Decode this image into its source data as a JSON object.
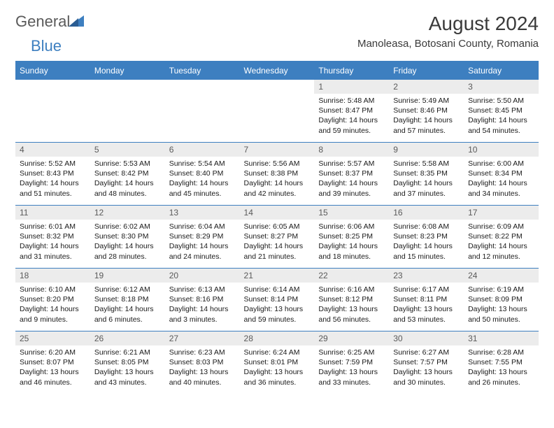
{
  "logo": {
    "text1": "General",
    "text2": "Blue"
  },
  "title": "August 2024",
  "location": "Manoleasa, Botosani County, Romania",
  "colors": {
    "header_bg": "#3d7fc0",
    "header_text": "#ffffff",
    "daynum_bg": "#ececec",
    "border": "#3d7fc0",
    "body_text": "#1a1a1a",
    "title_text": "#3a3a3a",
    "logo_gray": "#5a5a5a",
    "logo_blue": "#3d7fc0"
  },
  "weekdays": [
    "Sunday",
    "Monday",
    "Tuesday",
    "Wednesday",
    "Thursday",
    "Friday",
    "Saturday"
  ],
  "weeks": [
    [
      {
        "empty": true
      },
      {
        "empty": true
      },
      {
        "empty": true
      },
      {
        "empty": true
      },
      {
        "day": "1",
        "sunrise": "Sunrise: 5:48 AM",
        "sunset": "Sunset: 8:47 PM",
        "daylight1": "Daylight: 14 hours",
        "daylight2": "and 59 minutes."
      },
      {
        "day": "2",
        "sunrise": "Sunrise: 5:49 AM",
        "sunset": "Sunset: 8:46 PM",
        "daylight1": "Daylight: 14 hours",
        "daylight2": "and 57 minutes."
      },
      {
        "day": "3",
        "sunrise": "Sunrise: 5:50 AM",
        "sunset": "Sunset: 8:45 PM",
        "daylight1": "Daylight: 14 hours",
        "daylight2": "and 54 minutes."
      }
    ],
    [
      {
        "day": "4",
        "sunrise": "Sunrise: 5:52 AM",
        "sunset": "Sunset: 8:43 PM",
        "daylight1": "Daylight: 14 hours",
        "daylight2": "and 51 minutes."
      },
      {
        "day": "5",
        "sunrise": "Sunrise: 5:53 AM",
        "sunset": "Sunset: 8:42 PM",
        "daylight1": "Daylight: 14 hours",
        "daylight2": "and 48 minutes."
      },
      {
        "day": "6",
        "sunrise": "Sunrise: 5:54 AM",
        "sunset": "Sunset: 8:40 PM",
        "daylight1": "Daylight: 14 hours",
        "daylight2": "and 45 minutes."
      },
      {
        "day": "7",
        "sunrise": "Sunrise: 5:56 AM",
        "sunset": "Sunset: 8:38 PM",
        "daylight1": "Daylight: 14 hours",
        "daylight2": "and 42 minutes."
      },
      {
        "day": "8",
        "sunrise": "Sunrise: 5:57 AM",
        "sunset": "Sunset: 8:37 PM",
        "daylight1": "Daylight: 14 hours",
        "daylight2": "and 39 minutes."
      },
      {
        "day": "9",
        "sunrise": "Sunrise: 5:58 AM",
        "sunset": "Sunset: 8:35 PM",
        "daylight1": "Daylight: 14 hours",
        "daylight2": "and 37 minutes."
      },
      {
        "day": "10",
        "sunrise": "Sunrise: 6:00 AM",
        "sunset": "Sunset: 8:34 PM",
        "daylight1": "Daylight: 14 hours",
        "daylight2": "and 34 minutes."
      }
    ],
    [
      {
        "day": "11",
        "sunrise": "Sunrise: 6:01 AM",
        "sunset": "Sunset: 8:32 PM",
        "daylight1": "Daylight: 14 hours",
        "daylight2": "and 31 minutes."
      },
      {
        "day": "12",
        "sunrise": "Sunrise: 6:02 AM",
        "sunset": "Sunset: 8:30 PM",
        "daylight1": "Daylight: 14 hours",
        "daylight2": "and 28 minutes."
      },
      {
        "day": "13",
        "sunrise": "Sunrise: 6:04 AM",
        "sunset": "Sunset: 8:29 PM",
        "daylight1": "Daylight: 14 hours",
        "daylight2": "and 24 minutes."
      },
      {
        "day": "14",
        "sunrise": "Sunrise: 6:05 AM",
        "sunset": "Sunset: 8:27 PM",
        "daylight1": "Daylight: 14 hours",
        "daylight2": "and 21 minutes."
      },
      {
        "day": "15",
        "sunrise": "Sunrise: 6:06 AM",
        "sunset": "Sunset: 8:25 PM",
        "daylight1": "Daylight: 14 hours",
        "daylight2": "and 18 minutes."
      },
      {
        "day": "16",
        "sunrise": "Sunrise: 6:08 AM",
        "sunset": "Sunset: 8:23 PM",
        "daylight1": "Daylight: 14 hours",
        "daylight2": "and 15 minutes."
      },
      {
        "day": "17",
        "sunrise": "Sunrise: 6:09 AM",
        "sunset": "Sunset: 8:22 PM",
        "daylight1": "Daylight: 14 hours",
        "daylight2": "and 12 minutes."
      }
    ],
    [
      {
        "day": "18",
        "sunrise": "Sunrise: 6:10 AM",
        "sunset": "Sunset: 8:20 PM",
        "daylight1": "Daylight: 14 hours",
        "daylight2": "and 9 minutes."
      },
      {
        "day": "19",
        "sunrise": "Sunrise: 6:12 AM",
        "sunset": "Sunset: 8:18 PM",
        "daylight1": "Daylight: 14 hours",
        "daylight2": "and 6 minutes."
      },
      {
        "day": "20",
        "sunrise": "Sunrise: 6:13 AM",
        "sunset": "Sunset: 8:16 PM",
        "daylight1": "Daylight: 14 hours",
        "daylight2": "and 3 minutes."
      },
      {
        "day": "21",
        "sunrise": "Sunrise: 6:14 AM",
        "sunset": "Sunset: 8:14 PM",
        "daylight1": "Daylight: 13 hours",
        "daylight2": "and 59 minutes."
      },
      {
        "day": "22",
        "sunrise": "Sunrise: 6:16 AM",
        "sunset": "Sunset: 8:12 PM",
        "daylight1": "Daylight: 13 hours",
        "daylight2": "and 56 minutes."
      },
      {
        "day": "23",
        "sunrise": "Sunrise: 6:17 AM",
        "sunset": "Sunset: 8:11 PM",
        "daylight1": "Daylight: 13 hours",
        "daylight2": "and 53 minutes."
      },
      {
        "day": "24",
        "sunrise": "Sunrise: 6:19 AM",
        "sunset": "Sunset: 8:09 PM",
        "daylight1": "Daylight: 13 hours",
        "daylight2": "and 50 minutes."
      }
    ],
    [
      {
        "day": "25",
        "sunrise": "Sunrise: 6:20 AM",
        "sunset": "Sunset: 8:07 PM",
        "daylight1": "Daylight: 13 hours",
        "daylight2": "and 46 minutes."
      },
      {
        "day": "26",
        "sunrise": "Sunrise: 6:21 AM",
        "sunset": "Sunset: 8:05 PM",
        "daylight1": "Daylight: 13 hours",
        "daylight2": "and 43 minutes."
      },
      {
        "day": "27",
        "sunrise": "Sunrise: 6:23 AM",
        "sunset": "Sunset: 8:03 PM",
        "daylight1": "Daylight: 13 hours",
        "daylight2": "and 40 minutes."
      },
      {
        "day": "28",
        "sunrise": "Sunrise: 6:24 AM",
        "sunset": "Sunset: 8:01 PM",
        "daylight1": "Daylight: 13 hours",
        "daylight2": "and 36 minutes."
      },
      {
        "day": "29",
        "sunrise": "Sunrise: 6:25 AM",
        "sunset": "Sunset: 7:59 PM",
        "daylight1": "Daylight: 13 hours",
        "daylight2": "and 33 minutes."
      },
      {
        "day": "30",
        "sunrise": "Sunrise: 6:27 AM",
        "sunset": "Sunset: 7:57 PM",
        "daylight1": "Daylight: 13 hours",
        "daylight2": "and 30 minutes."
      },
      {
        "day": "31",
        "sunrise": "Sunrise: 6:28 AM",
        "sunset": "Sunset: 7:55 PM",
        "daylight1": "Daylight: 13 hours",
        "daylight2": "and 26 minutes."
      }
    ]
  ]
}
